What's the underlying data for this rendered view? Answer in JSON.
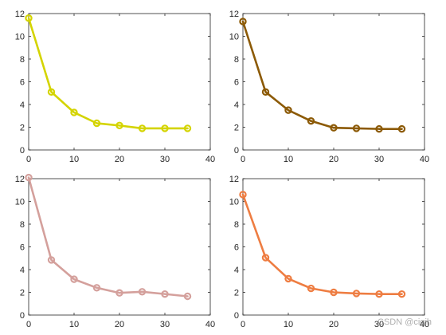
{
  "chart_data": [
    {
      "type": "line",
      "title": "",
      "xlabel": "",
      "ylabel": "",
      "xlim": [
        0,
        40
      ],
      "ylim": [
        0,
        12
      ],
      "xticks": [
        0,
        10,
        20,
        30,
        40
      ],
      "yticks": [
        0,
        2,
        4,
        6,
        8,
        10,
        12
      ],
      "grid": false,
      "legend": "none",
      "series": [
        {
          "color": "#d4d400",
          "marker": "circle",
          "x": [
            0,
            5,
            10,
            15,
            20,
            25,
            30,
            35
          ],
          "y": [
            11.6,
            5.1,
            3.3,
            2.35,
            2.15,
            1.9,
            1.9,
            1.9
          ]
        }
      ]
    },
    {
      "type": "line",
      "title": "",
      "xlabel": "",
      "ylabel": "",
      "xlim": [
        0,
        40
      ],
      "ylim": [
        0,
        12
      ],
      "xticks": [
        0,
        10,
        20,
        30,
        40
      ],
      "yticks": [
        0,
        2,
        4,
        6,
        8,
        10,
        12
      ],
      "grid": false,
      "legend": "none",
      "series": [
        {
          "color": "#8c5a06",
          "marker": "circle",
          "x": [
            0,
            5,
            10,
            15,
            20,
            25,
            30,
            35
          ],
          "y": [
            11.3,
            5.1,
            3.5,
            2.55,
            1.95,
            1.9,
            1.85,
            1.85
          ]
        }
      ]
    },
    {
      "type": "line",
      "title": "",
      "xlabel": "",
      "ylabel": "",
      "xlim": [
        0,
        40
      ],
      "ylim": [
        0,
        12
      ],
      "xticks": [
        0,
        10,
        20,
        30,
        40
      ],
      "yticks": [
        0,
        2,
        4,
        6,
        8,
        10,
        12
      ],
      "grid": false,
      "legend": "none",
      "series": [
        {
          "color": "#d4a09c",
          "marker": "circle",
          "x": [
            0,
            5,
            10,
            15,
            20,
            25,
            30,
            35
          ],
          "y": [
            12.1,
            4.85,
            3.15,
            2.4,
            1.95,
            2.05,
            1.85,
            1.65
          ]
        }
      ]
    },
    {
      "type": "line",
      "title": "",
      "xlabel": "",
      "ylabel": "",
      "xlim": [
        0,
        40
      ],
      "ylim": [
        0,
        12
      ],
      "xticks": [
        0,
        10,
        20,
        30,
        40
      ],
      "yticks": [
        0,
        2,
        4,
        6,
        8,
        10,
        12
      ],
      "grid": false,
      "legend": "none",
      "series": [
        {
          "color": "#ee7d42",
          "marker": "circle",
          "x": [
            0,
            5,
            10,
            15,
            20,
            25,
            30,
            35
          ],
          "y": [
            10.6,
            5.05,
            3.2,
            2.35,
            2.0,
            1.9,
            1.85,
            1.85
          ]
        }
      ]
    }
  ],
  "watermark": "CSDN @ciqih"
}
